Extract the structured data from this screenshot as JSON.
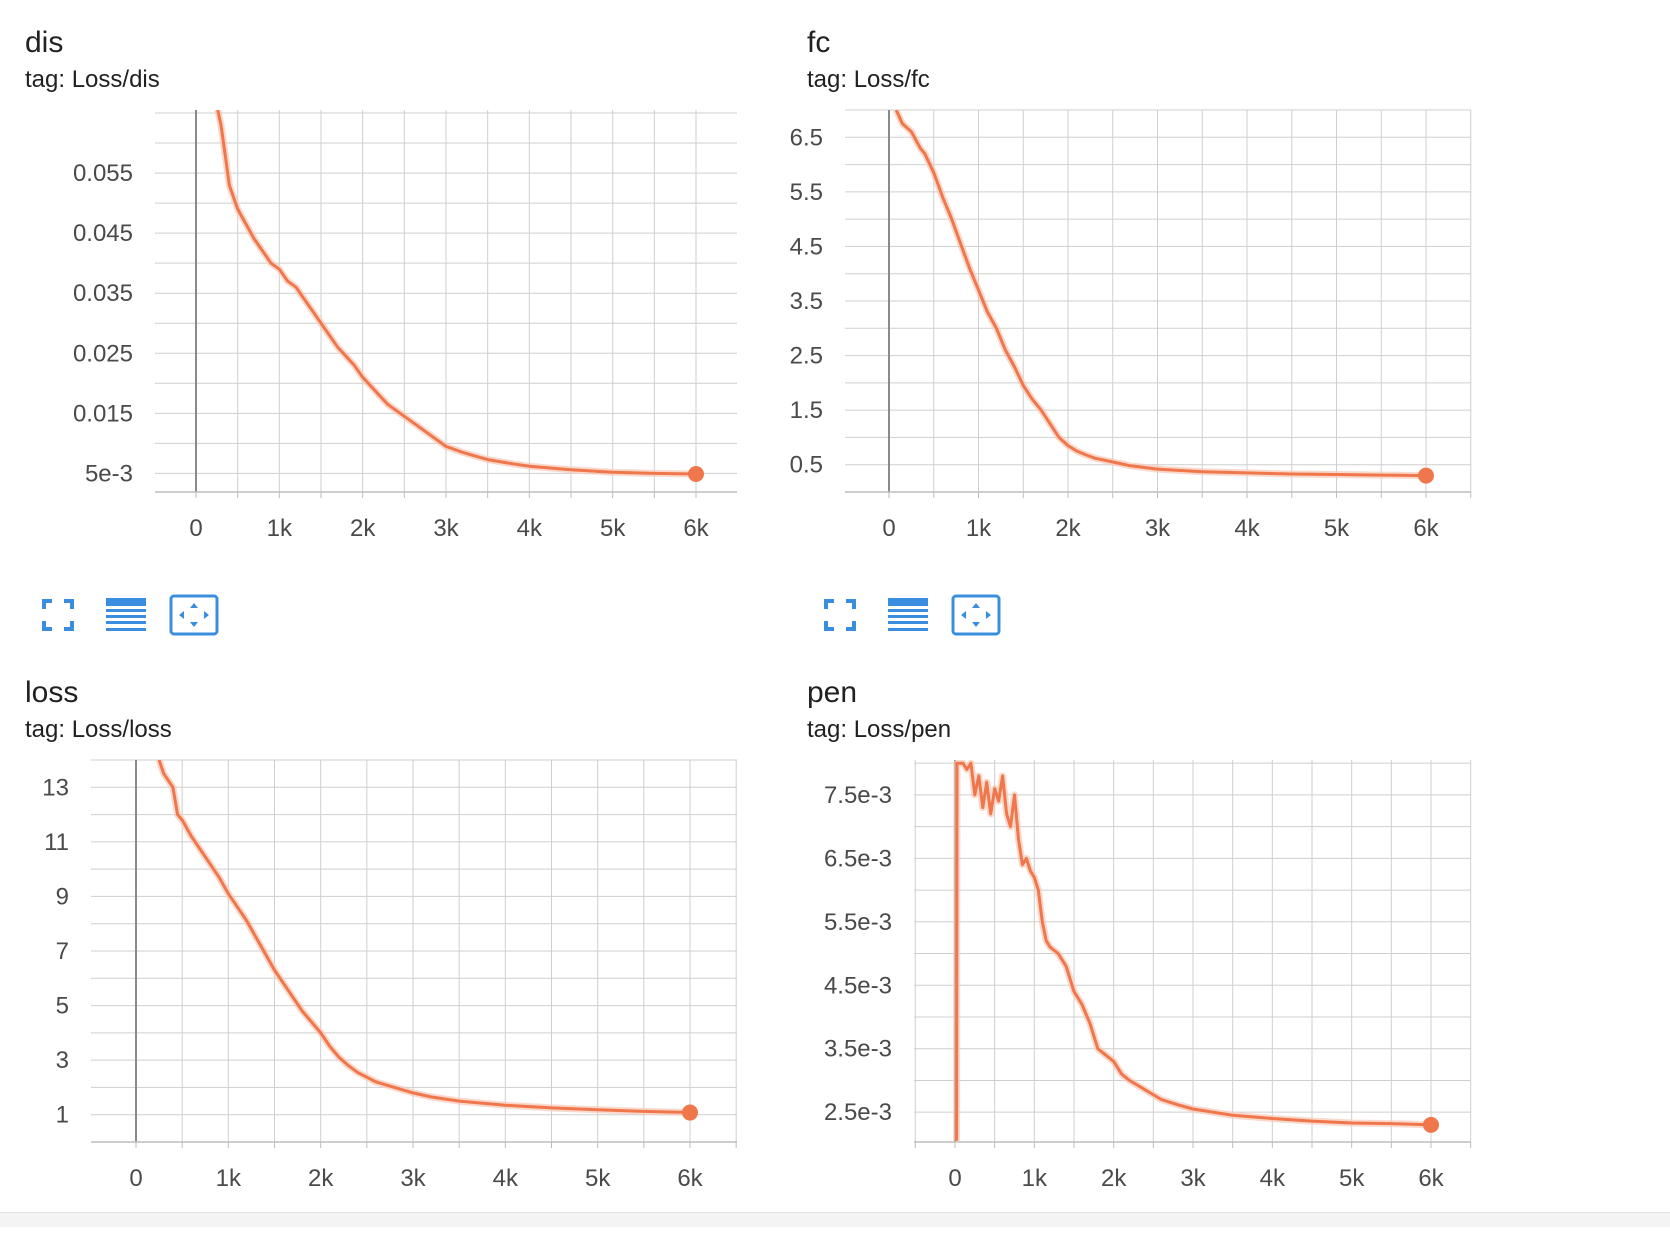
{
  "colors": {
    "line": "#f0764b",
    "raw": "#f7c9b6",
    "grid": "#cfcfcf",
    "axis": "#8a8a8a",
    "icon": "#3b8de0"
  },
  "toolbar_icons": [
    "fullscreen-icon",
    "list-lines-icon",
    "fit-domain-icon"
  ],
  "chart_data": [
    {
      "type": "line",
      "title": "dis",
      "tag": "tag: Loss/dis",
      "xlabel": "",
      "ylabel": "",
      "xlim": [
        -500,
        6500
      ],
      "ylim": [
        0.0019,
        0.0655
      ],
      "x_ticks": [
        0,
        1000,
        2000,
        3000,
        4000,
        5000,
        6000
      ],
      "x_tick_labels": [
        "0",
        "1k",
        "2k",
        "3k",
        "4k",
        "5k",
        "6k"
      ],
      "y_ticks": [
        0.005,
        0.015,
        0.025,
        0.035,
        0.045,
        0.055
      ],
      "y_tick_labels": [
        "5e-3",
        "0.015",
        "0.025",
        "0.035",
        "0.045",
        "0.055"
      ],
      "grid": true,
      "series": [
        {
          "x": [
            260,
            300,
            350,
            400,
            500,
            600,
            700,
            800,
            900,
            1000,
            1100,
            1200,
            1300,
            1400,
            1500,
            1600,
            1700,
            1800,
            1900,
            2000,
            2100,
            2200,
            2300,
            2400,
            2500,
            2600,
            2800,
            3000,
            3200,
            3500,
            3800,
            4000,
            4500,
            5000,
            5500,
            6000
          ],
          "y": [
            0.0655,
            0.063,
            0.058,
            0.053,
            0.049,
            0.0465,
            0.044,
            0.042,
            0.04,
            0.039,
            0.037,
            0.036,
            0.034,
            0.032,
            0.03,
            0.028,
            0.026,
            0.0245,
            0.023,
            0.021,
            0.0195,
            0.018,
            0.0165,
            0.0155,
            0.0145,
            0.0135,
            0.0115,
            0.0095,
            0.0085,
            0.0073,
            0.0066,
            0.0062,
            0.0056,
            0.0052,
            0.005,
            0.0049
          ]
        }
      ]
    },
    {
      "type": "line",
      "title": "fc",
      "tag": "tag: Loss/fc",
      "xlabel": "",
      "ylabel": "",
      "xlim": [
        -500,
        6500
      ],
      "ylim": [
        0.0,
        7.0
      ],
      "x_ticks": [
        0,
        1000,
        2000,
        3000,
        4000,
        5000,
        6000
      ],
      "x_tick_labels": [
        "0",
        "1k",
        "2k",
        "3k",
        "4k",
        "5k",
        "6k"
      ],
      "y_ticks": [
        0.5,
        1.5,
        2.5,
        3.5,
        4.5,
        5.5,
        6.5
      ],
      "y_tick_labels": [
        "0.5",
        "1.5",
        "2.5",
        "3.5",
        "4.5",
        "5.5",
        "6.5"
      ],
      "grid": true,
      "series": [
        {
          "x": [
            80,
            150,
            250,
            350,
            400,
            500,
            600,
            700,
            800,
            900,
            1000,
            1100,
            1200,
            1300,
            1400,
            1500,
            1600,
            1700,
            1800,
            1900,
            2000,
            2100,
            2200,
            2300,
            2500,
            2700,
            3000,
            3500,
            4000,
            4500,
            5000,
            5500,
            6000
          ],
          "y": [
            7.0,
            6.75,
            6.6,
            6.3,
            6.2,
            5.85,
            5.4,
            5.0,
            4.55,
            4.1,
            3.7,
            3.3,
            3.0,
            2.6,
            2.3,
            1.95,
            1.7,
            1.5,
            1.25,
            1.0,
            0.85,
            0.75,
            0.68,
            0.62,
            0.55,
            0.48,
            0.42,
            0.37,
            0.35,
            0.33,
            0.32,
            0.31,
            0.3
          ]
        }
      ]
    },
    {
      "type": "line",
      "title": "loss",
      "tag": "tag: Loss/loss",
      "xlabel": "",
      "ylabel": "",
      "xlim": [
        -500,
        6500
      ],
      "ylim": [
        0.0,
        14.0
      ],
      "x_ticks": [
        0,
        1000,
        2000,
        3000,
        4000,
        5000,
        6000
      ],
      "x_tick_labels": [
        "0",
        "1k",
        "2k",
        "3k",
        "4k",
        "5k",
        "6k"
      ],
      "y_ticks": [
        1,
        3,
        5,
        7,
        9,
        11,
        13
      ],
      "y_tick_labels": [
        "1",
        "3",
        "5",
        "7",
        "9",
        "11",
        "13"
      ],
      "grid": true,
      "series": [
        {
          "x": [
            250,
            300,
            400,
            450,
            500,
            600,
            700,
            800,
            900,
            1000,
            1100,
            1200,
            1300,
            1400,
            1500,
            1600,
            1700,
            1800,
            1900,
            2000,
            2100,
            2200,
            2300,
            2400,
            2600,
            2800,
            3000,
            3200,
            3500,
            4000,
            4500,
            5000,
            5500,
            6000
          ],
          "y": [
            14.0,
            13.5,
            13.0,
            12.0,
            11.8,
            11.2,
            10.7,
            10.2,
            9.7,
            9.1,
            8.6,
            8.1,
            7.5,
            6.9,
            6.3,
            5.8,
            5.3,
            4.8,
            4.4,
            4.0,
            3.5,
            3.1,
            2.8,
            2.55,
            2.2,
            2.0,
            1.8,
            1.65,
            1.5,
            1.35,
            1.25,
            1.18,
            1.12,
            1.08
          ]
        }
      ]
    },
    {
      "type": "line",
      "title": "pen",
      "tag": "tag: Loss/pen",
      "xlabel": "",
      "ylabel": "",
      "xlim": [
        -500,
        6500
      ],
      "ylim": [
        0.00203,
        0.00805
      ],
      "x_ticks": [
        0,
        1000,
        2000,
        3000,
        4000,
        5000,
        6000
      ],
      "x_tick_labels": [
        "0",
        "1k",
        "2k",
        "3k",
        "4k",
        "5k",
        "6k"
      ],
      "y_ticks": [
        0.0025,
        0.0035,
        0.0045,
        0.0055,
        0.0065,
        0.0075
      ],
      "y_tick_labels": [
        "2.5e-3",
        "3.5e-3",
        "4.5e-3",
        "5.5e-3",
        "6.5e-3",
        "7.5e-3"
      ],
      "grid": true,
      "series": [
        {
          "x": [
            20,
            25,
            30,
            100,
            150,
            200,
            250,
            300,
            350,
            400,
            450,
            500,
            550,
            600,
            650,
            700,
            750,
            800,
            850,
            900,
            950,
            1000,
            1050,
            1100,
            1150,
            1200,
            1300,
            1400,
            1500,
            1550,
            1600,
            1700,
            1800,
            1900,
            2000,
            2100,
            2200,
            2400,
            2600,
            2800,
            3000,
            3500,
            4000,
            4500,
            5000,
            5500,
            6000
          ],
          "y": [
            0.00205,
            0.008,
            0.008,
            0.008,
            0.0079,
            0.008,
            0.0075,
            0.0078,
            0.0073,
            0.0077,
            0.0072,
            0.0076,
            0.0074,
            0.0078,
            0.0072,
            0.007,
            0.0075,
            0.0068,
            0.0064,
            0.0065,
            0.0063,
            0.0062,
            0.006,
            0.0055,
            0.0052,
            0.0051,
            0.005,
            0.0048,
            0.0044,
            0.0043,
            0.0042,
            0.0039,
            0.0035,
            0.0034,
            0.0033,
            0.0031,
            0.003,
            0.00285,
            0.0027,
            0.00262,
            0.00255,
            0.00245,
            0.0024,
            0.00236,
            0.00233,
            0.00232,
            0.0023
          ]
        }
      ]
    }
  ]
}
